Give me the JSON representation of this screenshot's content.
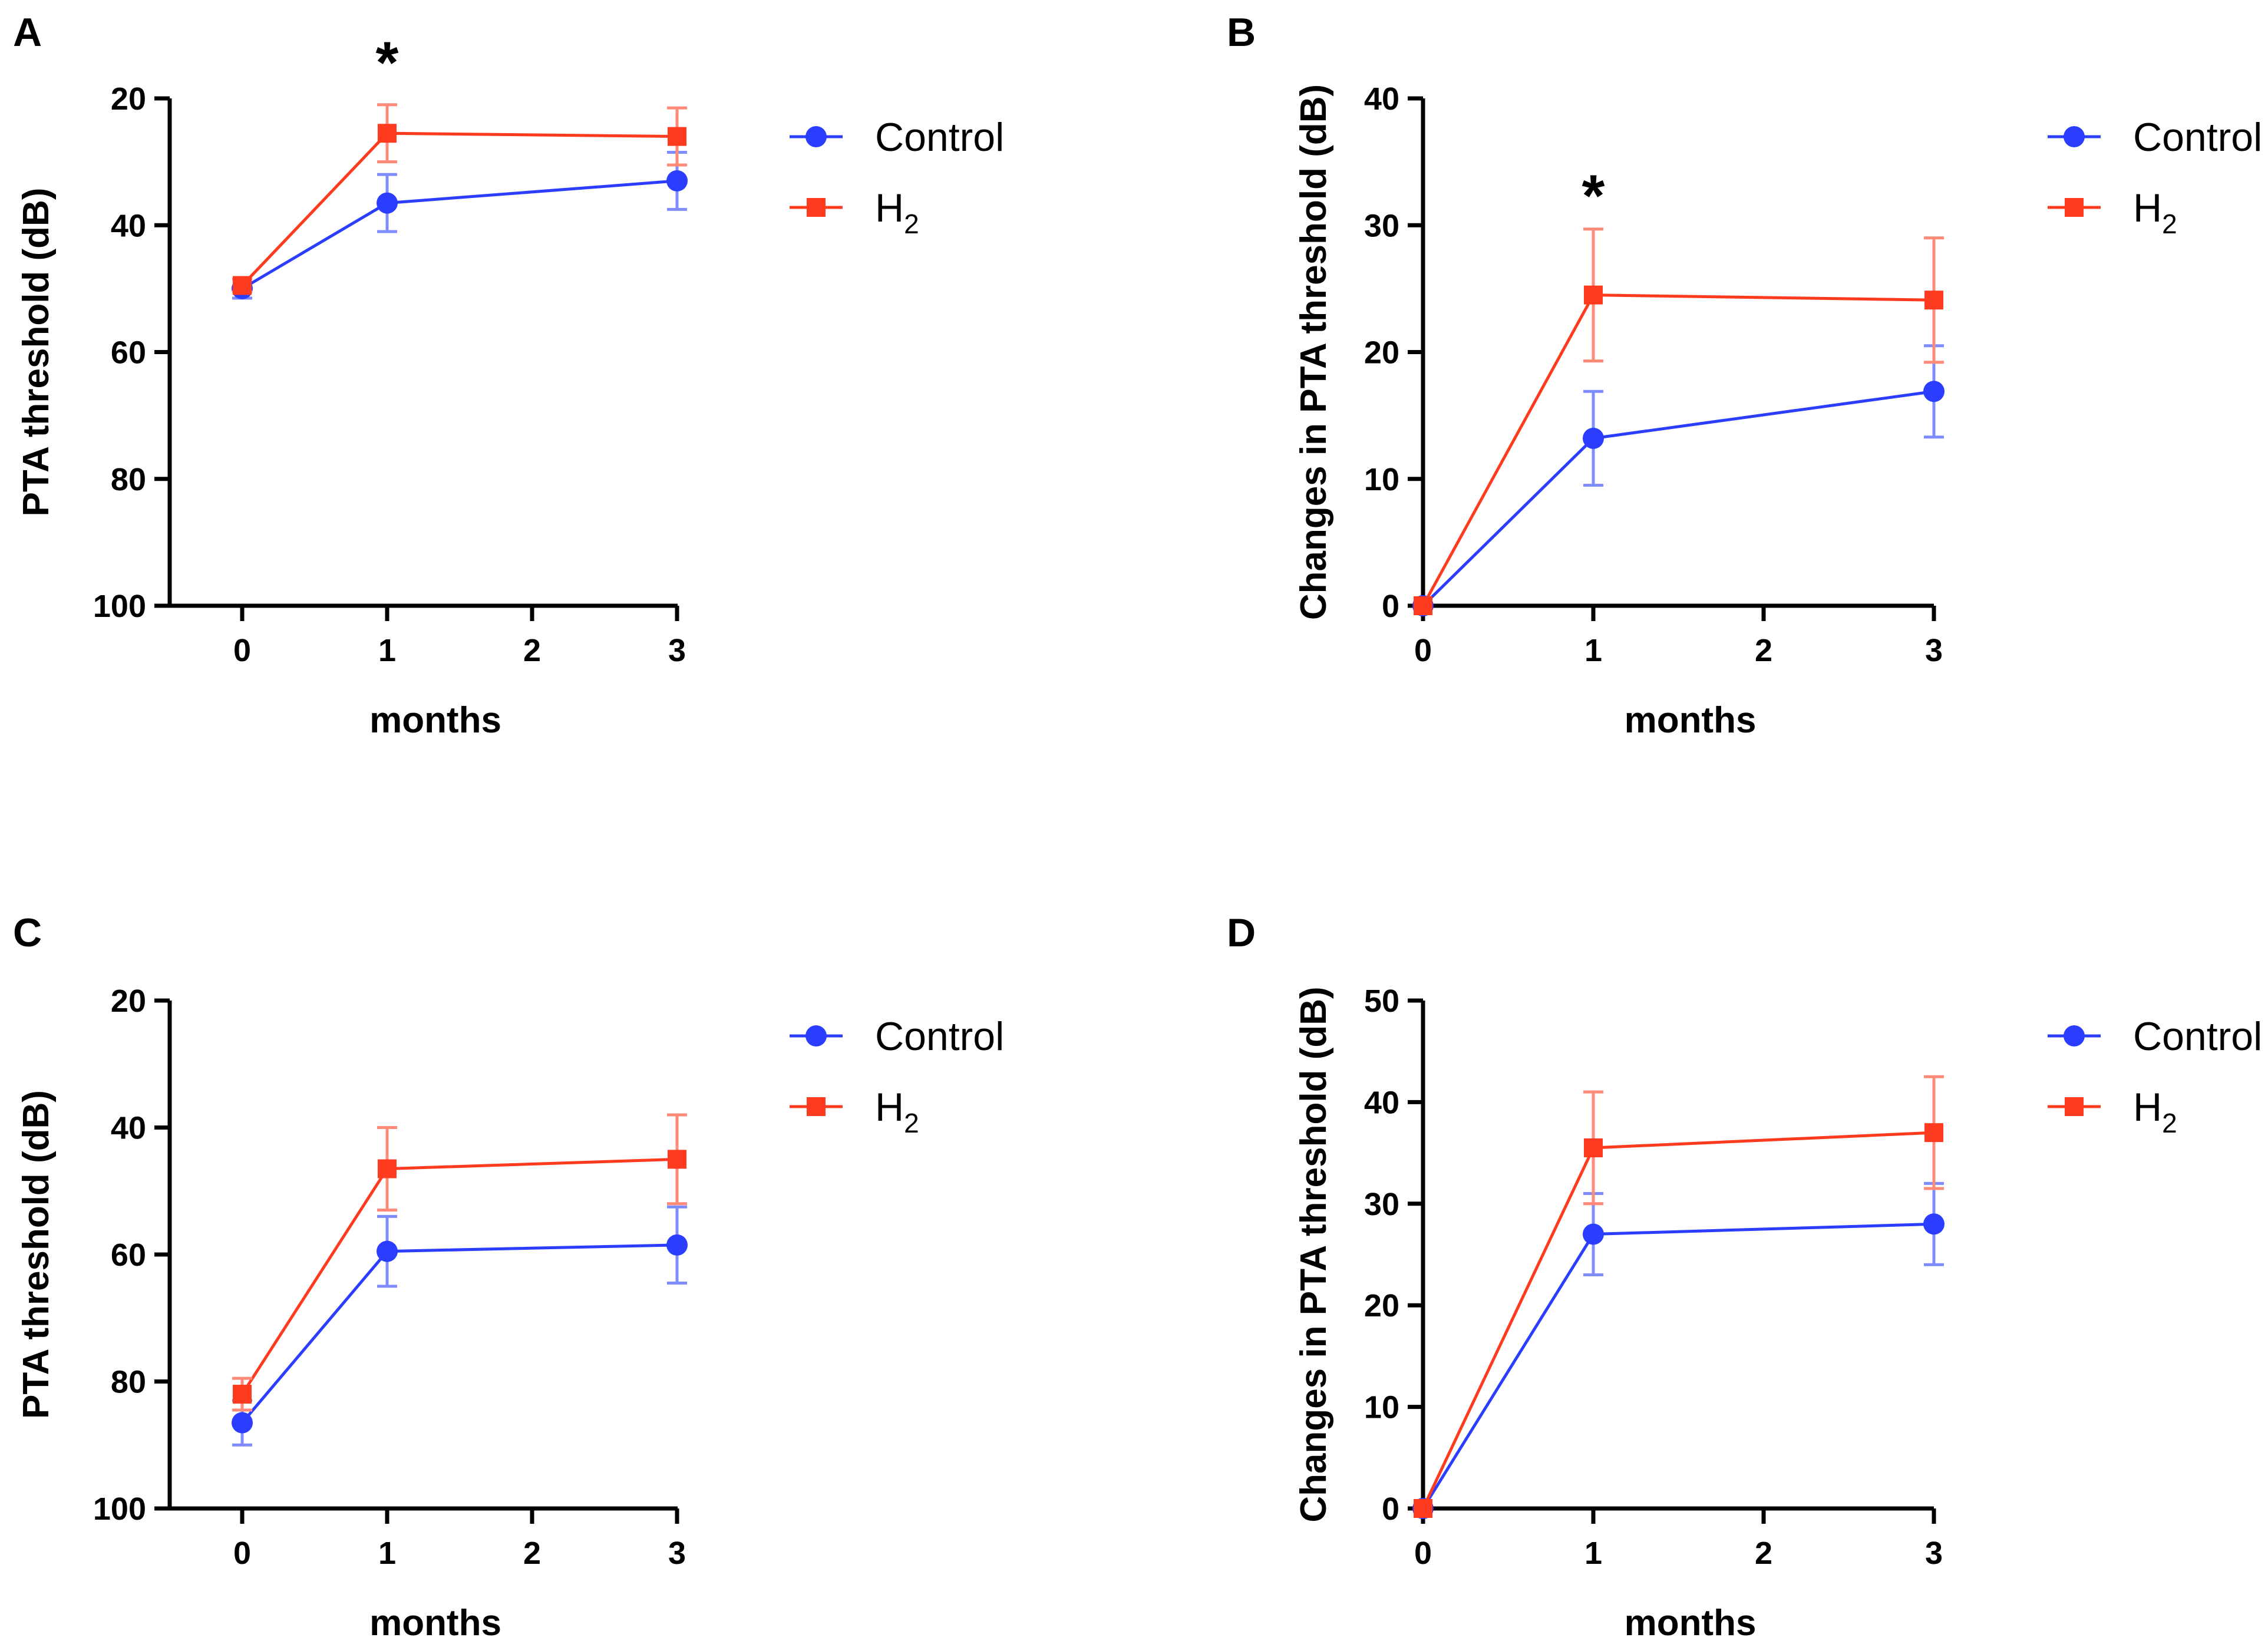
{
  "colors": {
    "control": "#2b3dff",
    "h2": "#ff3b1f",
    "control_err": "#7f8cff",
    "h2_err": "#ff8a78"
  },
  "chart_data": [
    {
      "type": "line",
      "panel": "A",
      "title": "",
      "xlabel": "months",
      "ylabel": "PTA threshold (dB)",
      "x": [
        0,
        1,
        3
      ],
      "xticks": [
        "0",
        "1",
        "2",
        "3"
      ],
      "xlim": [
        -0.5,
        3
      ],
      "ylim": [
        20,
        100
      ],
      "y_inverted": true,
      "yticks": [
        "20",
        "40",
        "60",
        "80",
        "100"
      ],
      "series": [
        {
          "name": "Control",
          "color_key": "control",
          "marker": "circle",
          "values": [
            50,
            36.5,
            33
          ],
          "err": [
            1.5,
            4.5,
            4.5
          ]
        },
        {
          "name": "H2",
          "label_main": "H",
          "label_sub": "2",
          "color_key": "h2",
          "marker": "square",
          "values": [
            49.5,
            25.5,
            26
          ],
          "err": [
            1,
            4.5,
            4.5
          ]
        }
      ],
      "annotations": [
        {
          "text": "*",
          "x": 1,
          "y": 14
        }
      ],
      "legend": "right"
    },
    {
      "type": "line",
      "panel": "B",
      "title": "",
      "xlabel": "months",
      "ylabel": "Changes in PTA threshold (dB)",
      "x": [
        0,
        1,
        3
      ],
      "xticks": [
        "0",
        "1",
        "2",
        "3"
      ],
      "xlim": [
        0,
        3
      ],
      "ylim": [
        0,
        40
      ],
      "y_inverted": false,
      "yticks": [
        "0",
        "10",
        "20",
        "30",
        "40"
      ],
      "series": [
        {
          "name": "Control",
          "color_key": "control",
          "marker": "circle",
          "values": [
            0,
            13.2,
            16.9
          ],
          "err": [
            0,
            3.7,
            3.6
          ]
        },
        {
          "name": "H2",
          "label_main": "H",
          "label_sub": "2",
          "color_key": "h2",
          "marker": "square",
          "values": [
            0,
            24.5,
            24.1
          ],
          "err": [
            0,
            5.2,
            4.9
          ]
        }
      ],
      "annotations": [
        {
          "text": "*",
          "x": 1,
          "y": 32.5
        }
      ],
      "legend": "right"
    },
    {
      "type": "line",
      "panel": "C",
      "title": "",
      "xlabel": "months",
      "ylabel": "PTA threshold (dB)",
      "x": [
        0,
        1,
        3
      ],
      "xticks": [
        "0",
        "1",
        "2",
        "3"
      ],
      "xlim": [
        -0.5,
        3
      ],
      "ylim": [
        20,
        100
      ],
      "y_inverted": true,
      "yticks": [
        "20",
        "40",
        "60",
        "80",
        "100"
      ],
      "series": [
        {
          "name": "Control",
          "color_key": "control",
          "marker": "circle",
          "values": [
            86.5,
            59.5,
            58.5
          ],
          "err": [
            3.5,
            5.5,
            6
          ]
        },
        {
          "name": "H2",
          "label_main": "H",
          "label_sub": "2",
          "color_key": "h2",
          "marker": "square",
          "values": [
            82,
            46.5,
            45
          ],
          "err": [
            2.5,
            6.5,
            7
          ]
        }
      ],
      "annotations": [],
      "legend": "right"
    },
    {
      "type": "line",
      "panel": "D",
      "title": "",
      "xlabel": "months",
      "ylabel": "Changes in PTA threshold (dB)",
      "x": [
        0,
        1,
        3
      ],
      "xticks": [
        "0",
        "1",
        "2",
        "3"
      ],
      "xlim": [
        0,
        3
      ],
      "ylim": [
        0,
        50
      ],
      "y_inverted": false,
      "yticks": [
        "0",
        "10",
        "20",
        "30",
        "40",
        "50"
      ],
      "series": [
        {
          "name": "Control",
          "color_key": "control",
          "marker": "circle",
          "values": [
            0,
            27,
            28
          ],
          "err": [
            0,
            4,
            4
          ]
        },
        {
          "name": "H2",
          "label_main": "H",
          "label_sub": "2",
          "color_key": "h2",
          "marker": "square",
          "values": [
            0,
            35.5,
            37
          ],
          "err": [
            0,
            5.5,
            5.5
          ]
        }
      ],
      "annotations": [],
      "legend": "right"
    }
  ]
}
